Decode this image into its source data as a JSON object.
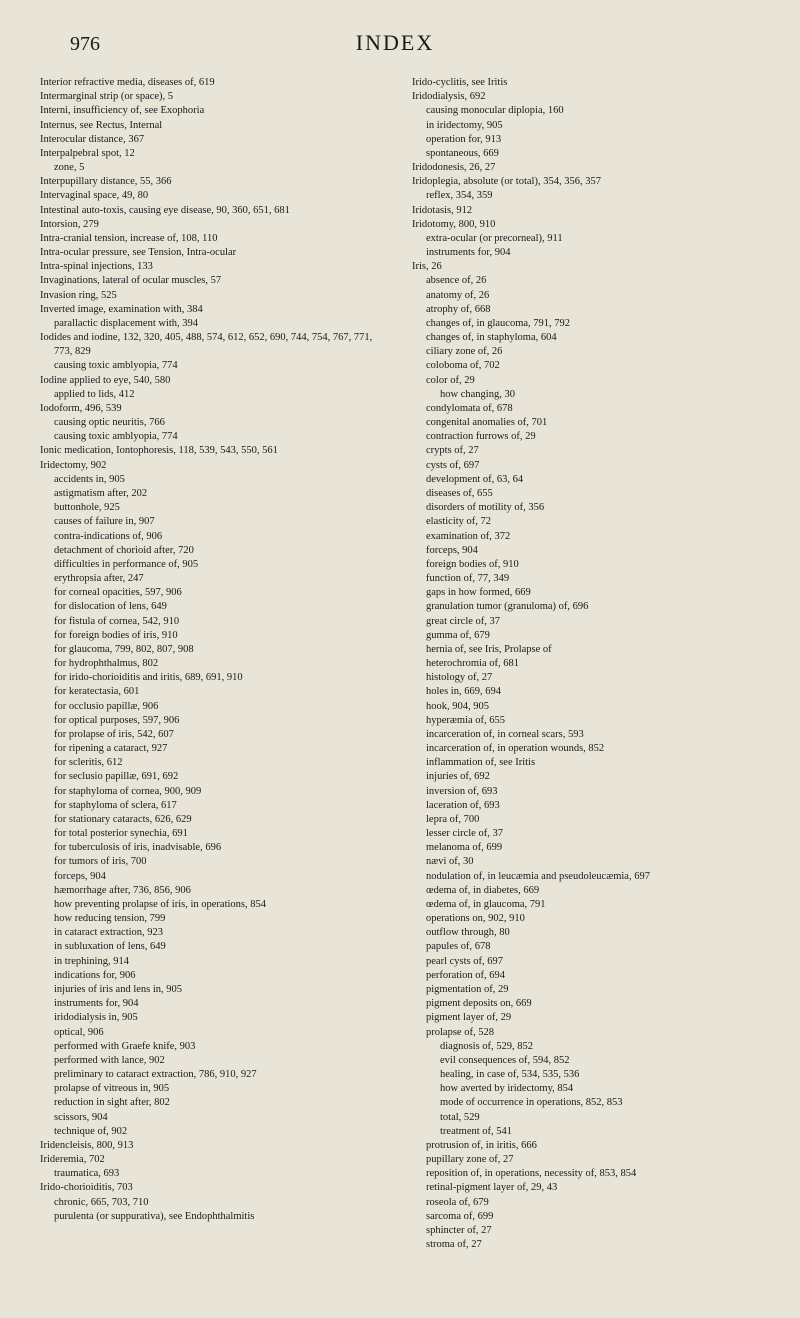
{
  "header": {
    "page_number": "976",
    "title": "INDEX"
  },
  "left_col": [
    {
      "lvl": 0,
      "t": "Interior refractive media, diseases of, 619"
    },
    {
      "lvl": 0,
      "t": "Intermarginal strip (or space), 5"
    },
    {
      "lvl": 0,
      "t": "Interni, insufficiency of, see Exophoria"
    },
    {
      "lvl": 0,
      "t": "Internus, see Rectus, Internal"
    },
    {
      "lvl": 0,
      "t": "Interocular distance, 367"
    },
    {
      "lvl": 0,
      "t": "Interpalpebral spot, 12"
    },
    {
      "lvl": 1,
      "t": "zone, 5"
    },
    {
      "lvl": 0,
      "t": "Interpupillary distance, 55, 366"
    },
    {
      "lvl": 0,
      "t": "Intervaginal space, 49, 80"
    },
    {
      "lvl": 0,
      "t": "Intestinal auto-toxis, causing eye disease, 90, 360, 651, 681"
    },
    {
      "lvl": 0,
      "t": "Intorsion, 279"
    },
    {
      "lvl": 0,
      "t": "Intra-cranial tension, increase of, 108, 110"
    },
    {
      "lvl": 0,
      "t": "Intra-ocular pressure, see Tension, Intra-ocular"
    },
    {
      "lvl": 0,
      "t": "Intra-spinal injections, 133"
    },
    {
      "lvl": 0,
      "t": "Invaginations, lateral of ocular muscles, 57"
    },
    {
      "lvl": 0,
      "t": "Invasion ring, 525"
    },
    {
      "lvl": 0,
      "t": "Inverted image, examination with, 384"
    },
    {
      "lvl": 1,
      "t": "parallactic displacement with, 394"
    },
    {
      "lvl": 0,
      "t": "Iodides and iodine, 132, 320, 405, 488, 574, 612, 652, 690, 744, 754, 767, 771, 773, 829"
    },
    {
      "lvl": 1,
      "t": "causing toxic amblyopia, 774"
    },
    {
      "lvl": 0,
      "t": "Iodine applied to eye, 540, 580"
    },
    {
      "lvl": 1,
      "t": "applied to lids, 412"
    },
    {
      "lvl": 0,
      "t": "Iodoform, 496, 539"
    },
    {
      "lvl": 1,
      "t": "causing optic neuritis, 766"
    },
    {
      "lvl": 1,
      "t": "causing toxic amblyopia, 774"
    },
    {
      "lvl": 0,
      "t": "Ionic medication, Iontophoresis, 118, 539, 543, 550, 561"
    },
    {
      "lvl": 0,
      "t": "Iridectomy, 902"
    },
    {
      "lvl": 1,
      "t": "accidents in, 905"
    },
    {
      "lvl": 1,
      "t": "astigmatism after, 202"
    },
    {
      "lvl": 1,
      "t": "buttonhole, 925"
    },
    {
      "lvl": 1,
      "t": "causes of failure in, 907"
    },
    {
      "lvl": 1,
      "t": "contra-indications of, 906"
    },
    {
      "lvl": 1,
      "t": "detachment of chorioid after, 720"
    },
    {
      "lvl": 1,
      "t": "difficulties in performance of, 905"
    },
    {
      "lvl": 1,
      "t": "erythropsia after, 247"
    },
    {
      "lvl": 1,
      "t": "for corneal opacities, 597, 906"
    },
    {
      "lvl": 1,
      "t": "for dislocation of lens, 649"
    },
    {
      "lvl": 1,
      "t": "for fistula of cornea, 542, 910"
    },
    {
      "lvl": 1,
      "t": "for foreign bodies of iris, 910"
    },
    {
      "lvl": 1,
      "t": "for glaucoma, 799, 802, 807, 908"
    },
    {
      "lvl": 1,
      "t": "for hydrophthalmus, 802"
    },
    {
      "lvl": 1,
      "t": "for irido-chorioiditis and iritis, 689, 691, 910"
    },
    {
      "lvl": 1,
      "t": "for keratectasia, 601"
    },
    {
      "lvl": 1,
      "t": "for occlusio papillæ, 906"
    },
    {
      "lvl": 1,
      "t": "for optical purposes, 597, 906"
    },
    {
      "lvl": 1,
      "t": "for prolapse of iris, 542, 607"
    },
    {
      "lvl": 1,
      "t": "for ripening a cataract, 927"
    },
    {
      "lvl": 1,
      "t": "for scleritis, 612"
    },
    {
      "lvl": 1,
      "t": "for seclusio papillæ, 691, 692"
    },
    {
      "lvl": 1,
      "t": "for staphyloma of cornea, 900, 909"
    },
    {
      "lvl": 1,
      "t": "for staphyloma of sclera, 617"
    },
    {
      "lvl": 1,
      "t": "for stationary cataracts, 626, 629"
    },
    {
      "lvl": 1,
      "t": "for total posterior synechia, 691"
    },
    {
      "lvl": 1,
      "t": "for tuberculosis of iris, inadvisable, 696"
    },
    {
      "lvl": 1,
      "t": "for tumors of iris, 700"
    },
    {
      "lvl": 1,
      "t": "forceps, 904"
    },
    {
      "lvl": 1,
      "t": "hæmorrhage after, 736, 856, 906"
    },
    {
      "lvl": 1,
      "t": "how preventing prolapse of iris, in operations, 854"
    },
    {
      "lvl": 1,
      "t": "how reducing tension, 799"
    },
    {
      "lvl": 1,
      "t": "in cataract extraction, 923"
    },
    {
      "lvl": 1,
      "t": "in subluxation of lens, 649"
    },
    {
      "lvl": 1,
      "t": "in trephining, 914"
    },
    {
      "lvl": 1,
      "t": "indications for, 906"
    },
    {
      "lvl": 1,
      "t": "injuries of iris and lens in, 905"
    },
    {
      "lvl": 1,
      "t": "instruments for, 904"
    },
    {
      "lvl": 1,
      "t": "iridodialysis in, 905"
    },
    {
      "lvl": 1,
      "t": "optical, 906"
    },
    {
      "lvl": 1,
      "t": "performed with Graefe knife, 903"
    },
    {
      "lvl": 1,
      "t": "performed with lance, 902"
    },
    {
      "lvl": 1,
      "t": "preliminary to cataract extraction, 786, 910, 927"
    },
    {
      "lvl": 1,
      "t": "prolapse of vitreous in, 905"
    },
    {
      "lvl": 1,
      "t": "reduction in sight after, 802"
    },
    {
      "lvl": 1,
      "t": "scissors, 904"
    },
    {
      "lvl": 1,
      "t": "technique of, 902"
    },
    {
      "lvl": 0,
      "t": "Iridencleisis, 800, 913"
    },
    {
      "lvl": 0,
      "t": "Irideremia, 702"
    },
    {
      "lvl": 1,
      "t": "traumatica, 693"
    },
    {
      "lvl": 0,
      "t": "Irido-chorioiditis, 703"
    },
    {
      "lvl": 1,
      "t": "chronic, 665, 703, 710"
    },
    {
      "lvl": 1,
      "t": "purulenta (or suppurativa), see Endophthalmitis"
    }
  ],
  "right_col": [
    {
      "lvl": 0,
      "t": "Irido-cyclitis, see Iritis"
    },
    {
      "lvl": 0,
      "t": "Iridodialysis, 692"
    },
    {
      "lvl": 1,
      "t": "causing monocular diplopia, 160"
    },
    {
      "lvl": 1,
      "t": "in iridectomy, 905"
    },
    {
      "lvl": 1,
      "t": "operation for, 913"
    },
    {
      "lvl": 1,
      "t": "spontaneous, 669"
    },
    {
      "lvl": 0,
      "t": "Iridodonesis, 26, 27"
    },
    {
      "lvl": 0,
      "t": "Iridoplegia, absolute (or total), 354, 356, 357"
    },
    {
      "lvl": 1,
      "t": "reflex, 354, 359"
    },
    {
      "lvl": 0,
      "t": "Iridotasis, 912"
    },
    {
      "lvl": 0,
      "t": "Iridotomy, 800, 910"
    },
    {
      "lvl": 1,
      "t": "extra-ocular (or precorneal), 911"
    },
    {
      "lvl": 1,
      "t": "instruments for, 904"
    },
    {
      "lvl": 0,
      "t": "Iris, 26"
    },
    {
      "lvl": 1,
      "t": "absence of, 26"
    },
    {
      "lvl": 1,
      "t": "anatomy of, 26"
    },
    {
      "lvl": 1,
      "t": "atrophy of, 668"
    },
    {
      "lvl": 1,
      "t": "changes of, in glaucoma, 791, 792"
    },
    {
      "lvl": 1,
      "t": "changes of, in staphyloma, 604"
    },
    {
      "lvl": 1,
      "t": "ciliary zone of, 26"
    },
    {
      "lvl": 1,
      "t": "coloboma of, 702"
    },
    {
      "lvl": 1,
      "t": "color of, 29"
    },
    {
      "lvl": 2,
      "t": "how changing, 30"
    },
    {
      "lvl": 1,
      "t": "condylomata of, 678"
    },
    {
      "lvl": 1,
      "t": "congenital anomalies of, 701"
    },
    {
      "lvl": 1,
      "t": "contraction furrows of, 29"
    },
    {
      "lvl": 1,
      "t": "crypts of, 27"
    },
    {
      "lvl": 1,
      "t": "cysts of, 697"
    },
    {
      "lvl": 1,
      "t": "development of, 63, 64"
    },
    {
      "lvl": 1,
      "t": "diseases of, 655"
    },
    {
      "lvl": 1,
      "t": "disorders of motility of, 356"
    },
    {
      "lvl": 1,
      "t": "elasticity of, 72"
    },
    {
      "lvl": 1,
      "t": "examination of, 372"
    },
    {
      "lvl": 1,
      "t": "forceps, 904"
    },
    {
      "lvl": 1,
      "t": "foreign bodies of, 910"
    },
    {
      "lvl": 1,
      "t": "function of, 77, 349"
    },
    {
      "lvl": 1,
      "t": "gaps in how formed, 669"
    },
    {
      "lvl": 1,
      "t": "granulation tumor (granuloma) of, 696"
    },
    {
      "lvl": 1,
      "t": "great circle of, 37"
    },
    {
      "lvl": 1,
      "t": "gumma of, 679"
    },
    {
      "lvl": 1,
      "t": "hernia of, see Iris, Prolapse of"
    },
    {
      "lvl": 1,
      "t": "heterochromia of, 681"
    },
    {
      "lvl": 1,
      "t": "histology of, 27"
    },
    {
      "lvl": 1,
      "t": "holes in, 669, 694"
    },
    {
      "lvl": 1,
      "t": "hook, 904, 905"
    },
    {
      "lvl": 1,
      "t": "hyperæmia of, 655"
    },
    {
      "lvl": 1,
      "t": "incarceration of, in corneal scars, 593"
    },
    {
      "lvl": 1,
      "t": "incarceration of, in operation wounds, 852"
    },
    {
      "lvl": 1,
      "t": "inflammation of, see Iritis"
    },
    {
      "lvl": 1,
      "t": "injuries of, 692"
    },
    {
      "lvl": 1,
      "t": "inversion of, 693"
    },
    {
      "lvl": 1,
      "t": "laceration of, 693"
    },
    {
      "lvl": 1,
      "t": "lepra of, 700"
    },
    {
      "lvl": 1,
      "t": "lesser circle of, 37"
    },
    {
      "lvl": 1,
      "t": "melanoma of, 699"
    },
    {
      "lvl": 1,
      "t": "nævi of, 30"
    },
    {
      "lvl": 1,
      "t": "nodulation of, in leucæmia and pseudoleucæmia, 697"
    },
    {
      "lvl": 1,
      "t": "œdema of, in diabetes, 669"
    },
    {
      "lvl": 1,
      "t": "œdema of, in glaucoma, 791"
    },
    {
      "lvl": 1,
      "t": "operations on, 902, 910"
    },
    {
      "lvl": 1,
      "t": "outflow through, 80"
    },
    {
      "lvl": 1,
      "t": "papules of, 678"
    },
    {
      "lvl": 1,
      "t": "pearl cysts of, 697"
    },
    {
      "lvl": 1,
      "t": "perforation of, 694"
    },
    {
      "lvl": 1,
      "t": "pigmentation of, 29"
    },
    {
      "lvl": 1,
      "t": "pigment deposits on, 669"
    },
    {
      "lvl": 1,
      "t": "pigment layer of, 29"
    },
    {
      "lvl": 1,
      "t": "prolapse of, 528"
    },
    {
      "lvl": 2,
      "t": "diagnosis of, 529, 852"
    },
    {
      "lvl": 2,
      "t": "evil consequences of, 594, 852"
    },
    {
      "lvl": 2,
      "t": "healing, in case of, 534, 535, 536"
    },
    {
      "lvl": 2,
      "t": "how averted by iridectomy, 854"
    },
    {
      "lvl": 2,
      "t": "mode of occurrence in operations, 852, 853"
    },
    {
      "lvl": 2,
      "t": "total, 529"
    },
    {
      "lvl": 2,
      "t": "treatment of, 541"
    },
    {
      "lvl": 1,
      "t": "protrusion of, in iritis, 666"
    },
    {
      "lvl": 1,
      "t": "pupillary zone of, 27"
    },
    {
      "lvl": 1,
      "t": "reposition of, in operations, necessity of, 853, 854"
    },
    {
      "lvl": 1,
      "t": "retinal-pigment layer of, 29, 43"
    },
    {
      "lvl": 1,
      "t": "roseola of, 679"
    },
    {
      "lvl": 1,
      "t": "sarcoma of, 699"
    },
    {
      "lvl": 1,
      "t": "sphincter of, 27"
    },
    {
      "lvl": 1,
      "t": "stroma of, 27"
    }
  ]
}
